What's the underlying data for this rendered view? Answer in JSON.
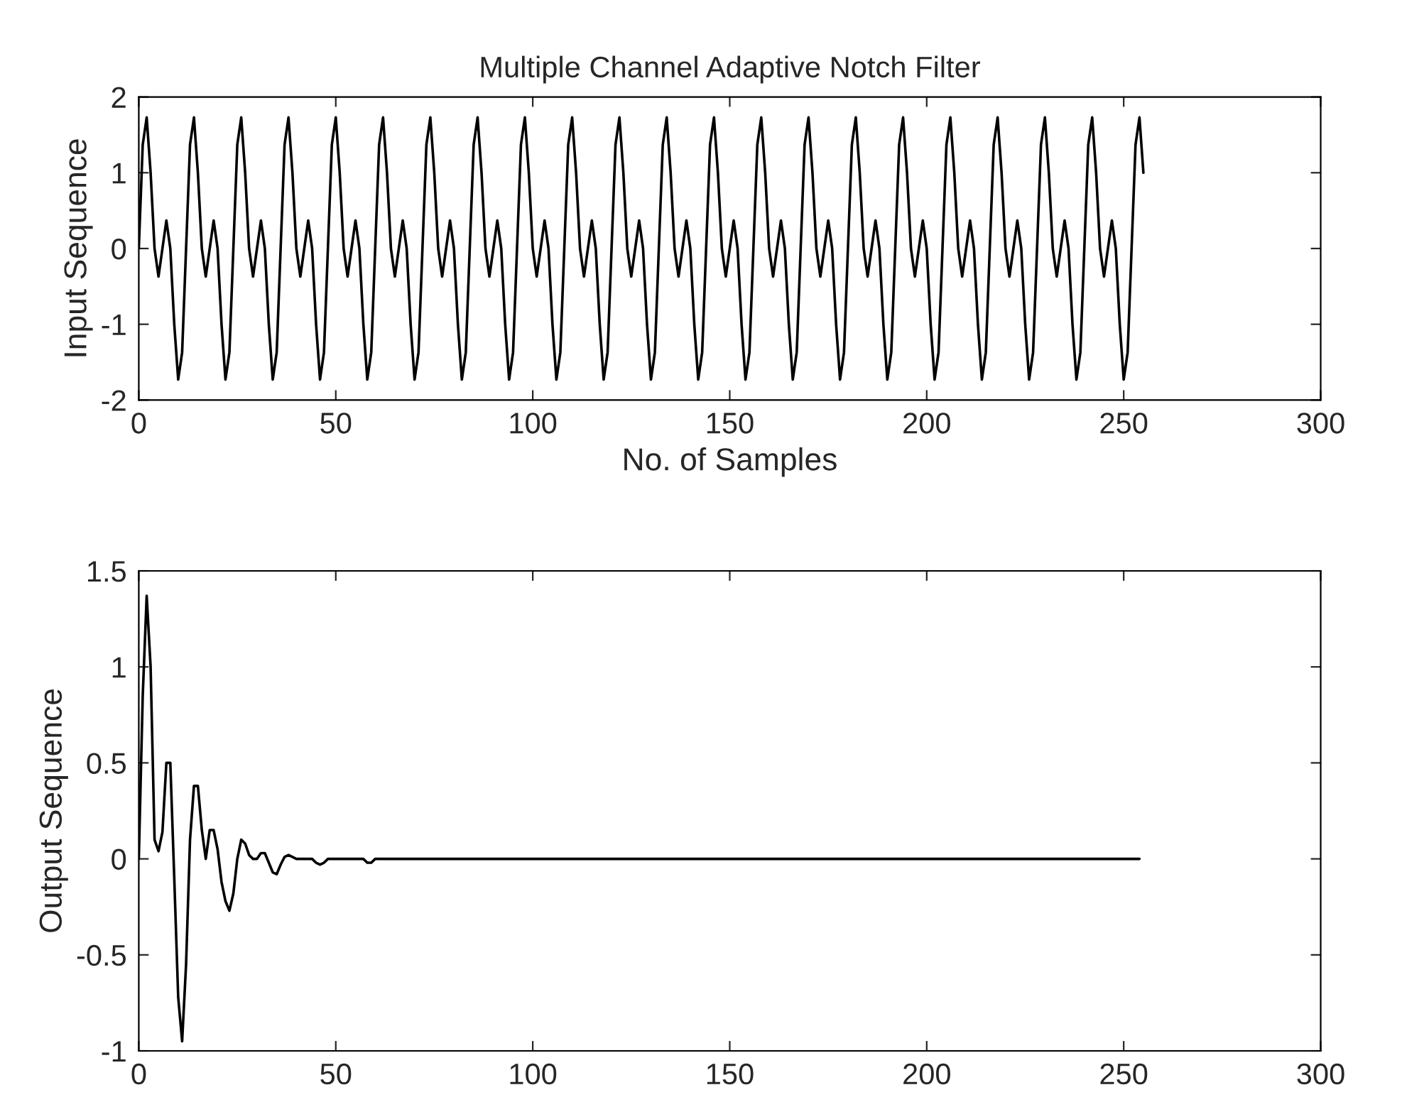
{
  "chart_data": [
    {
      "type": "line",
      "title": "Multiple Channel Adaptive Notch Filter",
      "xlabel": "No. of Samples",
      "ylabel": "Input Sequence",
      "xlim": [
        0,
        300
      ],
      "xticks": [
        0,
        50,
        100,
        150,
        200,
        250,
        300
      ],
      "ylim": [
        -2,
        2
      ],
      "yticks": [
        -2,
        -1,
        0,
        1,
        2
      ],
      "grid": false,
      "legend": false,
      "series": [
        {
          "color": "#000000",
          "x": [
            0,
            1,
            2,
            3,
            4,
            5,
            6,
            7,
            8,
            9,
            10,
            11,
            12,
            13,
            14,
            15,
            16,
            17,
            18,
            19,
            20,
            21,
            22,
            23,
            24,
            25,
            26,
            27,
            28,
            29,
            30,
            31,
            32,
            33,
            34,
            35,
            36,
            37,
            38,
            39,
            40,
            41,
            42,
            43,
            44,
            45,
            46,
            47,
            48,
            49,
            50,
            51,
            52,
            53,
            54,
            55,
            56,
            57,
            58,
            59,
            60,
            61,
            62,
            63,
            64,
            65,
            66,
            67,
            68,
            69,
            70,
            71,
            72,
            73,
            74,
            75,
            76,
            77,
            78,
            79,
            80,
            81,
            82,
            83,
            84,
            85,
            86,
            87,
            88,
            89,
            90,
            91,
            92,
            93,
            94,
            95,
            96,
            97,
            98,
            99,
            100,
            101,
            102,
            103,
            104,
            105,
            106,
            107,
            108,
            109,
            110,
            111,
            112,
            113,
            114,
            115,
            116,
            117,
            118,
            119,
            120,
            121,
            122,
            123,
            124,
            125,
            126,
            127,
            128,
            129,
            130,
            131,
            132,
            133,
            134,
            135,
            136,
            137,
            138,
            139,
            140,
            141,
            142,
            143,
            144,
            145,
            146,
            147,
            148,
            149,
            150,
            151,
            152,
            153,
            154,
            155,
            156,
            157,
            158,
            159,
            160,
            161,
            162,
            163,
            164,
            165,
            166,
            167,
            168,
            169,
            170,
            171,
            172,
            173,
            174,
            175,
            176,
            177,
            178,
            179,
            180,
            181,
            182,
            183,
            184,
            185,
            186,
            187,
            188,
            189,
            190,
            191,
            192,
            193,
            194,
            195,
            196,
            197,
            198,
            199,
            200,
            201,
            202,
            203,
            204,
            205,
            206,
            207,
            208,
            209,
            210,
            211,
            212,
            213,
            214,
            215,
            216,
            217,
            218,
            219,
            220,
            221,
            222,
            223,
            224,
            225,
            226,
            227,
            228,
            229,
            230,
            231,
            232,
            233,
            234,
            235,
            236,
            237,
            238,
            239,
            240,
            241,
            242,
            243,
            244,
            245,
            246,
            247,
            248,
            249,
            250,
            251,
            252,
            253,
            254,
            255
          ],
          "values": [
            0,
            1.37,
            1.73,
            1,
            0,
            -0.37,
            0,
            0.37,
            0,
            -1,
            -1.73,
            -1.37,
            0,
            1.37,
            1.73,
            1,
            0,
            -0.37,
            0,
            0.37,
            0,
            -1,
            -1.73,
            -1.37,
            0,
            1.37,
            1.73,
            1,
            0,
            -0.37,
            0,
            0.37,
            0,
            -1,
            -1.73,
            -1.37,
            0,
            1.37,
            1.73,
            1,
            0,
            -0.37,
            0,
            0.37,
            0,
            -1,
            -1.73,
            -1.37,
            0,
            1.37,
            1.73,
            1,
            0,
            -0.37,
            0,
            0.37,
            0,
            -1,
            -1.73,
            -1.37,
            0,
            1.37,
            1.73,
            1,
            0,
            -0.37,
            0,
            0.37,
            0,
            -1,
            -1.73,
            -1.37,
            0,
            1.37,
            1.73,
            1,
            0,
            -0.37,
            0,
            0.37,
            0,
            -1,
            -1.73,
            -1.37,
            0,
            1.37,
            1.73,
            1,
            0,
            -0.37,
            0,
            0.37,
            0,
            -1,
            -1.73,
            -1.37,
            0,
            1.37,
            1.73,
            1,
            0,
            -0.37,
            0,
            0.37,
            0,
            -1,
            -1.73,
            -1.37,
            0,
            1.37,
            1.73,
            1,
            0,
            -0.37,
            0,
            0.37,
            0,
            -1,
            -1.73,
            -1.37,
            0,
            1.37,
            1.73,
            1,
            0,
            -0.37,
            0,
            0.37,
            0,
            -1,
            -1.73,
            -1.37,
            0,
            1.37,
            1.73,
            1,
            0,
            -0.37,
            0,
            0.37,
            0,
            -1,
            -1.73,
            -1.37,
            0,
            1.37,
            1.73,
            1,
            0,
            -0.37,
            0,
            0.37,
            0,
            -1,
            -1.73,
            -1.37,
            0,
            1.37,
            1.73,
            1,
            0,
            -0.37,
            0,
            0.37,
            0,
            -1,
            -1.73,
            -1.37,
            0,
            1.37,
            1.73,
            1,
            0,
            -0.37,
            0,
            0.37,
            0,
            -1,
            -1.73,
            -1.37,
            0,
            1.37,
            1.73,
            1,
            0,
            -0.37,
            0,
            0.37,
            0,
            -1,
            -1.73,
            -1.37,
            0,
            1.37,
            1.73,
            1,
            0,
            -0.37,
            0,
            0.37,
            0,
            -1,
            -1.73,
            -1.37,
            0,
            1.37,
            1.73,
            1,
            0,
            -0.37,
            0,
            0.37,
            0,
            -1,
            -1.73,
            -1.37,
            0,
            1.37,
            1.73,
            1,
            0,
            -0.37,
            0,
            0.37,
            0,
            -1,
            -1.73,
            -1.37,
            0,
            1.37,
            1.73,
            1,
            0,
            -0.37,
            0,
            0.37,
            0,
            -1,
            -1.73,
            -1.37,
            0,
            1.37,
            1.73,
            1,
            0,
            -0.37,
            0,
            0.37,
            0,
            -1,
            -1.73,
            -1.37,
            0,
            1.37,
            1.73,
            1
          ]
        }
      ]
    },
    {
      "type": "line",
      "ylabel": "Output Sequence",
      "xlim": [
        0,
        300
      ],
      "xticks": [
        0,
        50,
        100,
        150,
        200,
        250,
        300
      ],
      "ylim": [
        -1,
        1.5
      ],
      "yticks": [
        -1,
        -0.5,
        0,
        0.5,
        1,
        1.5
      ],
      "grid": false,
      "legend": false,
      "series": [
        {
          "color": "#000000",
          "x": [
            0,
            1,
            2,
            3,
            4,
            5,
            6,
            7,
            8,
            9,
            10,
            11,
            12,
            13,
            14,
            15,
            16,
            17,
            18,
            19,
            20,
            21,
            22,
            23,
            24,
            25,
            26,
            27,
            28,
            29,
            30,
            31,
            32,
            33,
            34,
            35,
            36,
            37,
            38,
            39,
            40,
            41,
            42,
            43,
            44,
            45,
            46,
            47,
            48,
            49,
            50,
            51,
            52,
            53,
            54,
            55,
            56,
            57,
            58,
            59,
            60,
            61,
            62,
            63,
            64,
            65,
            66,
            67,
            68,
            69,
            70,
            71,
            72,
            73,
            74,
            75,
            76,
            77,
            78,
            79,
            80,
            81,
            82,
            83,
            84,
            85,
            86,
            87,
            88,
            89,
            90,
            91,
            92,
            93,
            94,
            95,
            96,
            97,
            98,
            99,
            100,
            101,
            102,
            103,
            104,
            105,
            106,
            107,
            108,
            109,
            110,
            111,
            112,
            113,
            114,
            115,
            116,
            117,
            118,
            119,
            120,
            121,
            122,
            123,
            124,
            125,
            126,
            127,
            128,
            129,
            130,
            131,
            132,
            133,
            134,
            135,
            136,
            137,
            138,
            139,
            140,
            141,
            142,
            143,
            144,
            145,
            146,
            147,
            148,
            149,
            150,
            151,
            152,
            153,
            154,
            155,
            156,
            157,
            158,
            159,
            160,
            161,
            162,
            163,
            164,
            165,
            166,
            167,
            168,
            169,
            170,
            171,
            172,
            173,
            174,
            175,
            176,
            177,
            178,
            179,
            180,
            181,
            182,
            183,
            184,
            185,
            186,
            187,
            188,
            189,
            190,
            191,
            192,
            193,
            194,
            195,
            196,
            197,
            198,
            199,
            200,
            201,
            202,
            203,
            204,
            205,
            206,
            207,
            208,
            209,
            210,
            211,
            212,
            213,
            214,
            215,
            216,
            217,
            218,
            219,
            220,
            221,
            222,
            223,
            224,
            225,
            226,
            227,
            228,
            229,
            230,
            231,
            232,
            233,
            234,
            235,
            236,
            237,
            238,
            239,
            240,
            241,
            242,
            243,
            244,
            245,
            246,
            247,
            248,
            249,
            250,
            251,
            252,
            253,
            254
          ],
          "values": [
            0,
            0.85,
            1.37,
            1.0,
            0.1,
            0.04,
            0.14,
            0.5,
            0.5,
            -0.1,
            -0.72,
            -0.95,
            -0.55,
            0.1,
            0.38,
            0.38,
            0.15,
            0.0,
            0.15,
            0.15,
            0.05,
            -0.12,
            -0.22,
            -0.27,
            -0.18,
            0.0,
            0.1,
            0.08,
            0.02,
            0.0,
            0.0,
            0.03,
            0.03,
            -0.02,
            -0.07,
            -0.08,
            -0.03,
            0.01,
            0.02,
            0.01,
            0,
            0,
            0,
            0,
            0,
            -0.02,
            -0.03,
            -0.02,
            0,
            0,
            0,
            0,
            0,
            0,
            0,
            0,
            0,
            0,
            -0.02,
            -0.02,
            0,
            0,
            0,
            0,
            0,
            0,
            0,
            0,
            0,
            0,
            0,
            0,
            0,
            0,
            0,
            0,
            0,
            0,
            0,
            0,
            0,
            0,
            0,
            0,
            0,
            0,
            0,
            0,
            0,
            0,
            0,
            0,
            0,
            0,
            0,
            0,
            0,
            0,
            0,
            0,
            0,
            0,
            0,
            0,
            0,
            0,
            0,
            0,
            0,
            0,
            0,
            0,
            0,
            0,
            0,
            0,
            0,
            0,
            0,
            0,
            0,
            0,
            0,
            0,
            0,
            0,
            0,
            0,
            0,
            0,
            0,
            0,
            0,
            0,
            0,
            0,
            0,
            0,
            0,
            0,
            0,
            0,
            0,
            0,
            0,
            0,
            0,
            0,
            0,
            0,
            0,
            0,
            0,
            0,
            0,
            0,
            0,
            0,
            0,
            0,
            0,
            0,
            0,
            0,
            0,
            0,
            0,
            0,
            0,
            0,
            0,
            0,
            0,
            0,
            0,
            0,
            0,
            0,
            0,
            0,
            0,
            0,
            0,
            0,
            0,
            0,
            0,
            0,
            0,
            0,
            0,
            0,
            0,
            0,
            0,
            0,
            0,
            0,
            0,
            0,
            0,
            0,
            0,
            0,
            0,
            0,
            0,
            0,
            0,
            0,
            0,
            0,
            0,
            0,
            0,
            0,
            0,
            0,
            0,
            0,
            0,
            0,
            0,
            0,
            0,
            0,
            0,
            0,
            0,
            0,
            0,
            0,
            0,
            0,
            0,
            0,
            0,
            0,
            0,
            0,
            0,
            0,
            0,
            0,
            0,
            0,
            0,
            0,
            0,
            0,
            0,
            0,
            0,
            0,
            0
          ]
        }
      ]
    }
  ]
}
